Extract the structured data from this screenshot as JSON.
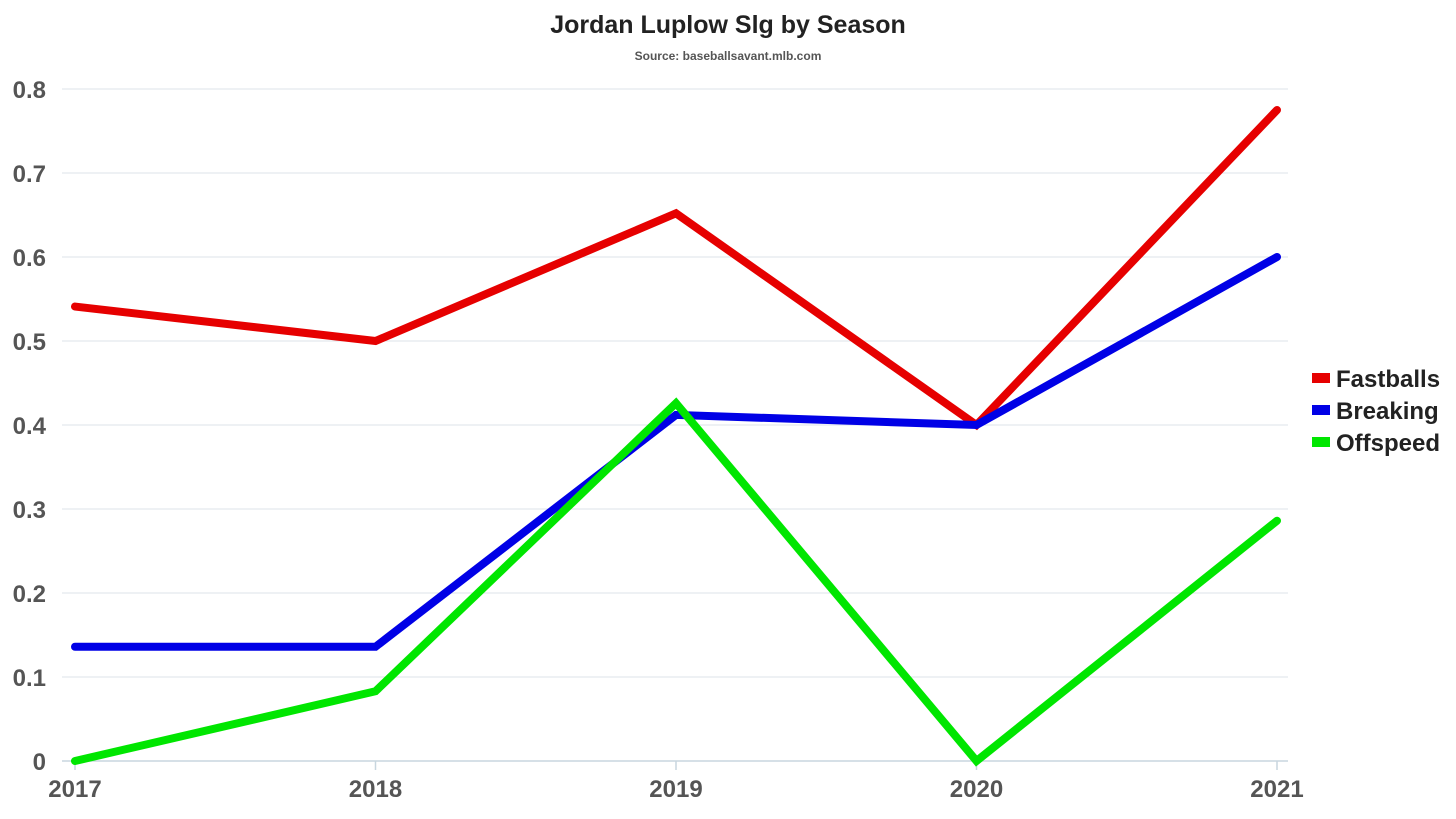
{
  "chart_data": {
    "type": "line",
    "title": "Jordan Luplow Slg by Season",
    "subtitle": "Source: baseballsavant.mlb.com",
    "xlabel": "",
    "ylabel": "",
    "categories": [
      "2017",
      "2018",
      "2019",
      "2020",
      "2021"
    ],
    "ylim": [
      0,
      0.8
    ],
    "yticks": [
      "0",
      "0.1",
      "0.2",
      "0.3",
      "0.4",
      "0.5",
      "0.6",
      "0.7",
      "0.8"
    ],
    "grid": true,
    "legend_position": "right",
    "series": [
      {
        "name": "Fastballs",
        "color": "#e60000",
        "values": [
          0.541,
          0.5,
          0.652,
          0.4,
          0.775
        ]
      },
      {
        "name": "Breaking",
        "color": "#0000e6",
        "values": [
          0.136,
          0.136,
          0.412,
          0.4,
          0.6
        ]
      },
      {
        "name": "Offspeed",
        "color": "#00e600",
        "values": [
          0.0,
          0.083,
          0.426,
          0.0,
          0.286
        ]
      }
    ]
  }
}
